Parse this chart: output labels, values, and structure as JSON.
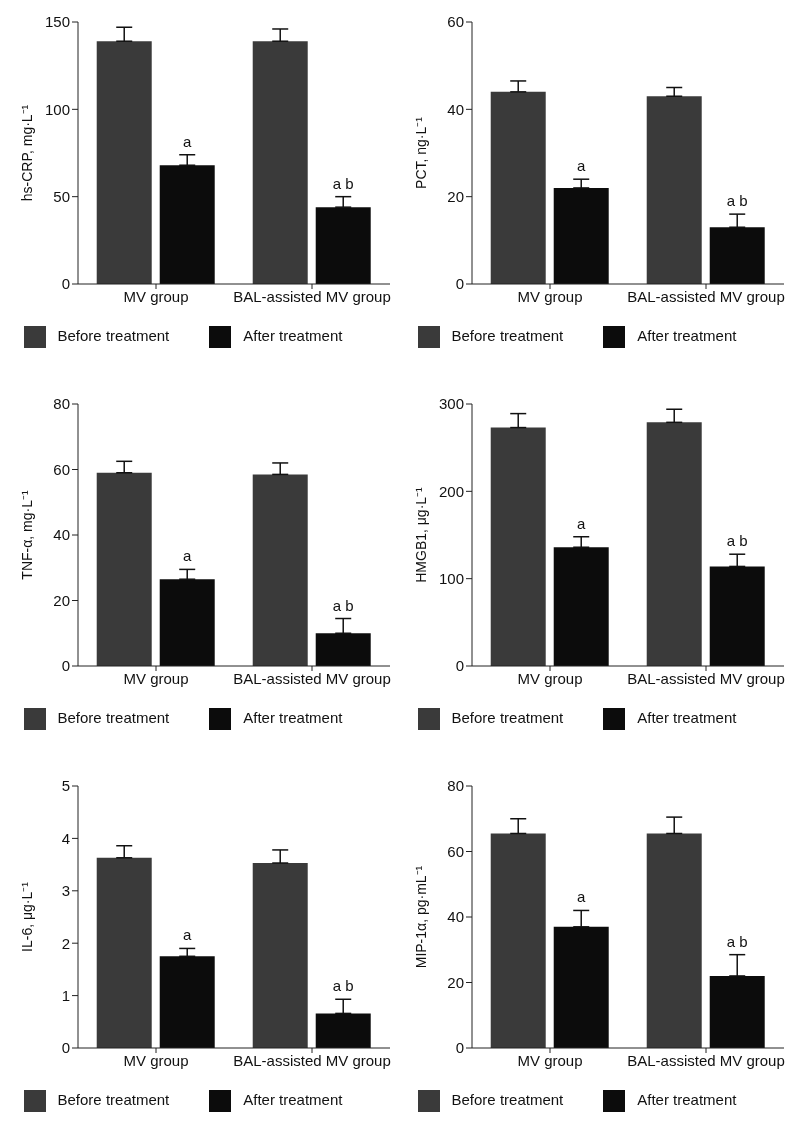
{
  "chart_data": [
    {
      "type": "bar",
      "ylabel": "hs-CRP, mg·L⁻¹",
      "categories": [
        "MV group",
        "BAL-assisted MV group"
      ],
      "series": [
        {
          "name": "Before treatment",
          "color": "#3a3a3a",
          "values": [
            139,
            139
          ],
          "errors": [
            8,
            7
          ]
        },
        {
          "name": "After treatment",
          "color": "#0c0c0c",
          "values": [
            68,
            44
          ],
          "errors": [
            6,
            6
          ]
        }
      ],
      "ylim": [
        0,
        150
      ],
      "yticks": [
        0,
        50,
        100,
        150
      ],
      "legend": "bottom",
      "annotations": [
        {
          "text": "a",
          "x": "MV group",
          "y": 74
        },
        {
          "text": "a b",
          "x": "BAL-assisted MV group",
          "y": 50
        }
      ]
    },
    {
      "type": "bar",
      "ylabel": "PCT, ng·L⁻¹",
      "categories": [
        "MV group",
        "BAL-assisted MV group"
      ],
      "series": [
        {
          "name": "Before treatment",
          "color": "#3a3a3a",
          "values": [
            44,
            43
          ],
          "errors": [
            2.5,
            2
          ]
        },
        {
          "name": "After treatment",
          "color": "#0c0c0c",
          "values": [
            22,
            13
          ],
          "errors": [
            2,
            3
          ]
        }
      ],
      "ylim": [
        0,
        60
      ],
      "yticks": [
        0,
        20,
        40,
        60
      ],
      "legend": "bottom",
      "annotations": [
        {
          "text": "a",
          "x": "MV group",
          "y": 24
        },
        {
          "text": "a b",
          "x": "BAL-assisted MV group",
          "y": 16
        }
      ]
    },
    {
      "type": "bar",
      "ylabel": "TNF-α, mg·L⁻¹",
      "categories": [
        "MV group",
        "BAL-assisted MV group"
      ],
      "series": [
        {
          "name": "Before treatment",
          "color": "#3a3a3a",
          "values": [
            59,
            58.5
          ],
          "errors": [
            3.5,
            3.5
          ]
        },
        {
          "name": "After treatment",
          "color": "#0c0c0c",
          "values": [
            26.5,
            10
          ],
          "errors": [
            3,
            4.5
          ]
        }
      ],
      "ylim": [
        0,
        80
      ],
      "yticks": [
        0,
        20,
        40,
        60,
        80
      ],
      "legend": "bottom",
      "annotations": [
        {
          "text": "a",
          "x": "MV group",
          "y": 29.5
        },
        {
          "text": "a b",
          "x": "BAL-assisted MV group",
          "y": 14.5
        }
      ]
    },
    {
      "type": "bar",
      "ylabel": "HMGB1, μg·L⁻¹",
      "categories": [
        "MV group",
        "BAL-assisted MV group"
      ],
      "series": [
        {
          "name": "Before treatment",
          "color": "#3a3a3a",
          "values": [
            273,
            279
          ],
          "errors": [
            16,
            15
          ]
        },
        {
          "name": "After treatment",
          "color": "#0c0c0c",
          "values": [
            136,
            114
          ],
          "errors": [
            12,
            14
          ]
        }
      ],
      "ylim": [
        0,
        300
      ],
      "yticks": [
        0,
        100,
        200,
        300
      ],
      "legend": "bottom",
      "annotations": [
        {
          "text": "a",
          "x": "MV group",
          "y": 148
        },
        {
          "text": "a b",
          "x": "BAL-assisted MV group",
          "y": 128
        }
      ]
    },
    {
      "type": "bar",
      "ylabel": "IL-6, μg·L⁻¹",
      "categories": [
        "MV group",
        "BAL-assisted MV group"
      ],
      "series": [
        {
          "name": "Before treatment",
          "color": "#3a3a3a",
          "values": [
            3.63,
            3.53
          ],
          "errors": [
            0.23,
            0.25
          ]
        },
        {
          "name": "After treatment",
          "color": "#0c0c0c",
          "values": [
            1.75,
            0.66
          ],
          "errors": [
            0.15,
            0.27
          ]
        }
      ],
      "ylim": [
        0,
        5
      ],
      "yticks": [
        0,
        1,
        2,
        3,
        4,
        5
      ],
      "legend": "bottom",
      "annotations": [
        {
          "text": "a",
          "x": "MV group",
          "y": 1.9
        },
        {
          "text": "a b",
          "x": "BAL-assisted MV group",
          "y": 0.93
        }
      ]
    },
    {
      "type": "bar",
      "ylabel": "MIP-1α, pg·mL⁻¹",
      "categories": [
        "MV group",
        "BAL-assisted MV group"
      ],
      "series": [
        {
          "name": "Before treatment",
          "color": "#3a3a3a",
          "values": [
            65.5,
            65.5
          ],
          "errors": [
            4.5,
            5
          ]
        },
        {
          "name": "After treatment",
          "color": "#0c0c0c",
          "values": [
            37,
            22
          ],
          "errors": [
            5,
            6.5
          ]
        }
      ],
      "ylim": [
        0,
        80
      ],
      "yticks": [
        0,
        20,
        40,
        60,
        80
      ],
      "legend": "bottom",
      "annotations": [
        {
          "text": "a",
          "x": "MV group",
          "y": 42
        },
        {
          "text": "a b",
          "x": "BAL-assisted MV group",
          "y": 28.5
        }
      ]
    }
  ]
}
